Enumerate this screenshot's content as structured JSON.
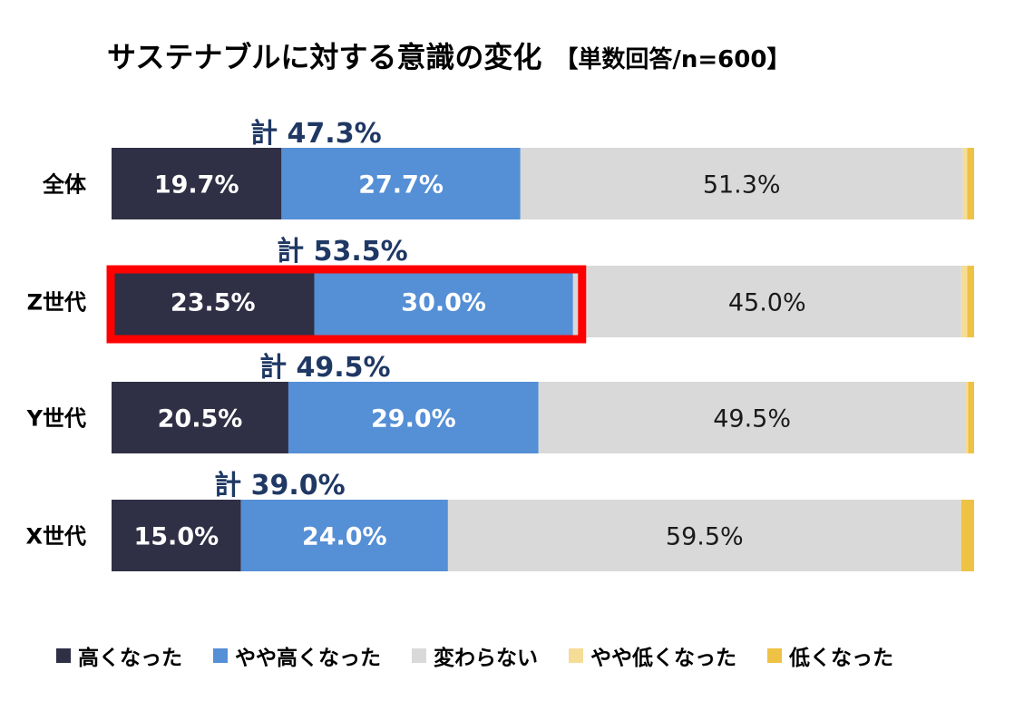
{
  "title": "サステナブルに対する意識の変化",
  "subtitle": "【単数回答/n=600】",
  "chart_data": {
    "type": "bar",
    "orientation": "horizontal",
    "stacked": true,
    "categories": [
      "全体",
      "Z世代",
      "Y世代",
      "X世代"
    ],
    "series": [
      {
        "name": "高くなった",
        "color": "#2f2f45",
        "values": [
          19.7,
          23.5,
          20.5,
          15.0
        ]
      },
      {
        "name": "やや高くなった",
        "color": "#558fd6",
        "values": [
          27.7,
          30.0,
          29.0,
          24.0
        ]
      },
      {
        "name": "変わらない",
        "color": "#d9d9d9",
        "values": [
          51.3,
          45.0,
          49.5,
          59.5
        ]
      },
      {
        "name": "やや低くなった",
        "color": "#f5dc97",
        "values": [
          0.5,
          0.7,
          0.3,
          0.0
        ]
      },
      {
        "name": "低くなった",
        "color": "#eec244",
        "values": [
          0.8,
          0.8,
          0.7,
          1.5
        ]
      }
    ],
    "value_labels": [
      [
        "19.7%",
        "27.7%",
        "51.3%"
      ],
      [
        "23.5%",
        "30.0%",
        "45.0%"
      ],
      [
        "20.5%",
        "29.0%",
        "49.5%"
      ],
      [
        "15.0%",
        "24.0%",
        "59.5%"
      ]
    ],
    "totals": [
      "計 47.3%",
      "計 53.5%",
      "計 49.5%",
      "計 39.0%"
    ],
    "highlight_category": "Z世代",
    "highlight_color": "#ff0000",
    "xlim": [
      0,
      100
    ],
    "legend_position": "bottom",
    "grid": false
  }
}
